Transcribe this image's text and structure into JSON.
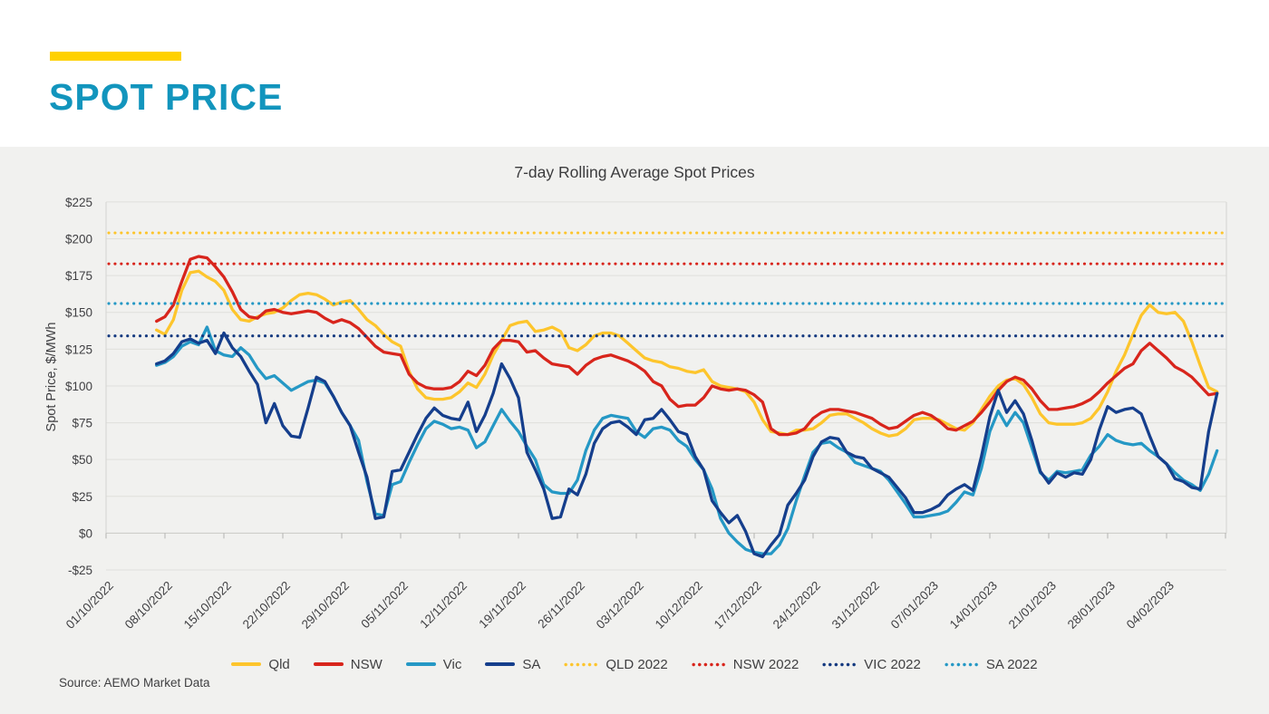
{
  "page": {
    "header": {
      "title": "SPOT PRICE",
      "accent_color": "#FFD100",
      "title_color": "#1295BD"
    },
    "source_note": "Source: AEMO Market Data"
  },
  "chart_data": {
    "type": "line",
    "title": "7-day Rolling Average Spot Prices",
    "xlabel": "",
    "ylabel": "Spot Price, $/MWh",
    "ylim": [
      -25,
      225
    ],
    "grid": true,
    "legend_position": "bottom",
    "background": "#F1F1EF",
    "yticks": [
      {
        "v": 225,
        "label": "$225"
      },
      {
        "v": 200,
        "label": "$200"
      },
      {
        "v": 175,
        "label": "$175"
      },
      {
        "v": 150,
        "label": "$150"
      },
      {
        "v": 125,
        "label": "$125"
      },
      {
        "v": 100,
        "label": "$100"
      },
      {
        "v": 75,
        "label": "$75"
      },
      {
        "v": 50,
        "label": "$50"
      },
      {
        "v": 25,
        "label": "$25"
      },
      {
        "v": 0,
        "label": "$0"
      },
      {
        "v": -25,
        "label": "-$25"
      }
    ],
    "x_tick_labels": [
      "01/10/2022",
      "08/10/2022",
      "15/10/2022",
      "22/10/2022",
      "29/10/2022",
      "05/11/2022",
      "12/11/2022",
      "19/11/2022",
      "26/11/2022",
      "03/12/2022",
      "10/12/2022",
      "17/12/2022",
      "24/12/2022",
      "31/12/2022",
      "07/01/2023",
      "14/01/2023",
      "21/01/2023",
      "28/01/2023",
      "04/02/2023"
    ],
    "series_start_date": "07/10/2022",
    "series_interval": "daily",
    "series": [
      {
        "name": "Qld",
        "style": "solid",
        "color": "#FDC52C",
        "values": [
          138,
          135,
          145,
          165,
          177,
          178,
          174,
          171,
          165,
          152,
          145,
          144,
          147,
          149,
          150,
          153,
          158,
          162,
          163,
          162,
          159,
          155,
          157,
          158,
          152,
          145,
          141,
          135,
          130,
          127,
          110,
          98,
          92,
          91,
          91,
          92,
          96,
          102,
          99,
          108,
          121,
          131,
          141,
          143,
          144,
          137,
          138,
          140,
          137,
          126,
          124,
          128,
          134,
          136,
          136,
          134,
          129,
          124,
          119,
          117,
          116,
          113,
          112,
          110,
          109,
          111,
          103,
          100,
          99,
          98,
          96,
          89,
          77,
          69,
          68,
          67,
          70,
          70,
          71,
          75,
          80,
          81,
          81,
          78,
          75,
          71,
          68,
          66,
          67,
          71,
          77,
          78,
          78,
          77,
          74,
          71,
          70,
          75,
          84,
          93,
          100,
          104,
          105,
          101,
          92,
          81,
          75,
          74,
          74,
          74,
          75,
          78,
          85,
          96,
          110,
          121,
          135,
          148,
          155,
          150,
          149,
          150,
          144,
          130,
          114,
          99,
          96
        ]
      },
      {
        "name": "NSW",
        "style": "solid",
        "color": "#D8251C",
        "values": [
          144,
          147,
          155,
          171,
          186,
          188,
          187,
          181,
          174,
          164,
          152,
          147,
          146,
          151,
          152,
          150,
          149,
          150,
          151,
          150,
          146,
          143,
          145,
          143,
          139,
          133,
          127,
          123,
          122,
          121,
          108,
          102,
          99,
          98,
          98,
          99,
          103,
          110,
          107,
          114,
          125,
          131,
          131,
          130,
          123,
          124,
          119,
          115,
          114,
          113,
          108,
          114,
          118,
          120,
          121,
          119,
          117,
          114,
          110,
          103,
          100,
          91,
          86,
          87,
          87,
          92,
          100,
          98,
          97,
          98,
          97,
          94,
          89,
          71,
          67,
          67,
          68,
          71,
          78,
          82,
          84,
          84,
          83,
          82,
          80,
          78,
          74,
          71,
          72,
          76,
          80,
          82,
          80,
          76,
          71,
          70,
          73,
          76,
          82,
          89,
          97,
          103,
          106,
          104,
          98,
          90,
          84,
          84,
          85,
          86,
          88,
          91,
          96,
          102,
          107,
          112,
          115,
          124,
          129,
          124,
          119,
          113,
          110,
          106,
          100,
          94,
          95
        ]
      },
      {
        "name": "Vic",
        "style": "solid",
        "color": "#2598C5",
        "values": [
          114,
          116,
          120,
          127,
          130,
          128,
          140,
          124,
          121,
          120,
          126,
          121,
          112,
          105,
          107,
          102,
          97,
          100,
          103,
          104,
          102,
          93,
          82,
          73,
          63,
          35,
          13,
          12,
          33,
          35,
          48,
          60,
          71,
          76,
          74,
          71,
          72,
          70,
          58,
          62,
          73,
          84,
          76,
          69,
          59,
          50,
          33,
          28,
          27,
          27,
          36,
          56,
          70,
          78,
          80,
          79,
          78,
          69,
          65,
          71,
          72,
          70,
          63,
          59,
          50,
          43,
          30,
          10,
          0,
          -6,
          -11,
          -13,
          -14,
          -14,
          -8,
          3,
          22,
          39,
          55,
          61,
          62,
          58,
          55,
          48,
          46,
          44,
          42,
          36,
          28,
          20,
          11,
          11,
          12,
          13,
          15,
          21,
          28,
          26,
          44,
          69,
          83,
          73,
          82,
          75,
          58,
          41,
          36,
          42,
          41,
          42,
          43,
          53,
          59,
          67,
          63,
          61,
          60,
          61,
          56,
          52,
          47,
          41,
          36,
          33,
          29,
          40,
          56
        ]
      },
      {
        "name": "SA",
        "style": "solid",
        "color": "#153E8C",
        "values": [
          115,
          117,
          122,
          130,
          132,
          129,
          131,
          122,
          136,
          126,
          120,
          110,
          101,
          75,
          88,
          73,
          66,
          65,
          85,
          106,
          103,
          93,
          82,
          73,
          55,
          38,
          10,
          11,
          42,
          43,
          55,
          67,
          78,
          85,
          80,
          78,
          77,
          89,
          69,
          80,
          95,
          115,
          105,
          92,
          55,
          43,
          30,
          10,
          11,
          30,
          26,
          40,
          61,
          71,
          75,
          76,
          72,
          67,
          77,
          78,
          84,
          77,
          69,
          67,
          52,
          43,
          22,
          14,
          7,
          12,
          1,
          -14,
          -16,
          -8,
          -1,
          19,
          27,
          36,
          52,
          62,
          65,
          64,
          55,
          52,
          51,
          44,
          41,
          38,
          31,
          24,
          14,
          14,
          16,
          19,
          26,
          30,
          33,
          29,
          52,
          79,
          97,
          82,
          90,
          81,
          63,
          42,
          34,
          41,
          38,
          41,
          40,
          50,
          70,
          86,
          82,
          84,
          85,
          81,
          66,
          52,
          47,
          37,
          35,
          31,
          30,
          69,
          95
        ]
      },
      {
        "name": "QLD 2022",
        "style": "dotted",
        "color": "#FDC52C",
        "value": 204
      },
      {
        "name": "NSW 2022",
        "style": "dotted",
        "color": "#D8251C",
        "value": 183
      },
      {
        "name": "VIC 2022",
        "style": "dotted",
        "color": "#14397F",
        "value": 134
      },
      {
        "name": "SA 2022",
        "style": "dotted",
        "color": "#2598C5",
        "value": 156
      }
    ]
  }
}
